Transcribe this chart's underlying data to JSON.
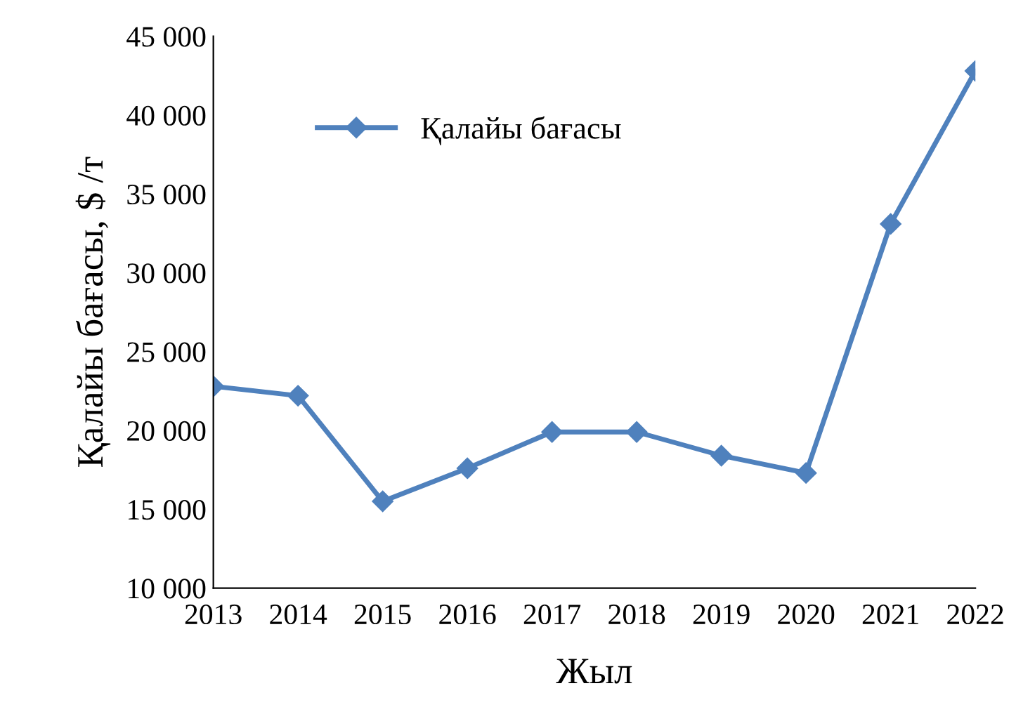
{
  "chart_data": {
    "type": "line",
    "xlabel": "Жыл",
    "ylabel": "Қалайы бағасы, $ /т",
    "x": [
      2013,
      2014,
      2015,
      2016,
      2017,
      2018,
      2019,
      2020,
      2021,
      2022
    ],
    "series": [
      {
        "name": "Қалайы бағасы",
        "color": "#4f81bd",
        "values": [
          22800,
          22200,
          15500,
          17600,
          19900,
          19900,
          18400,
          17300,
          33100,
          42800
        ]
      }
    ],
    "xlim": [
      2013,
      2022
    ],
    "xticks": [
      2013,
      2014,
      2015,
      2016,
      2017,
      2018,
      2019,
      2020,
      2021,
      2022
    ],
    "ylim": [
      10000,
      45000
    ],
    "yticks": [
      {
        "value": 10000,
        "label": "10 000"
      },
      {
        "value": 15000,
        "label": "15 000"
      },
      {
        "value": 20000,
        "label": "20 000"
      },
      {
        "value": 25000,
        "label": "25 000"
      },
      {
        "value": 30000,
        "label": "30 000"
      },
      {
        "value": 35000,
        "label": "35 000"
      },
      {
        "value": 40000,
        "label": "40 000"
      },
      {
        "value": 45000,
        "label": "45 000"
      }
    ],
    "grid": false,
    "legend": "top left",
    "marker": "diamond",
    "line_style": "solid"
  }
}
